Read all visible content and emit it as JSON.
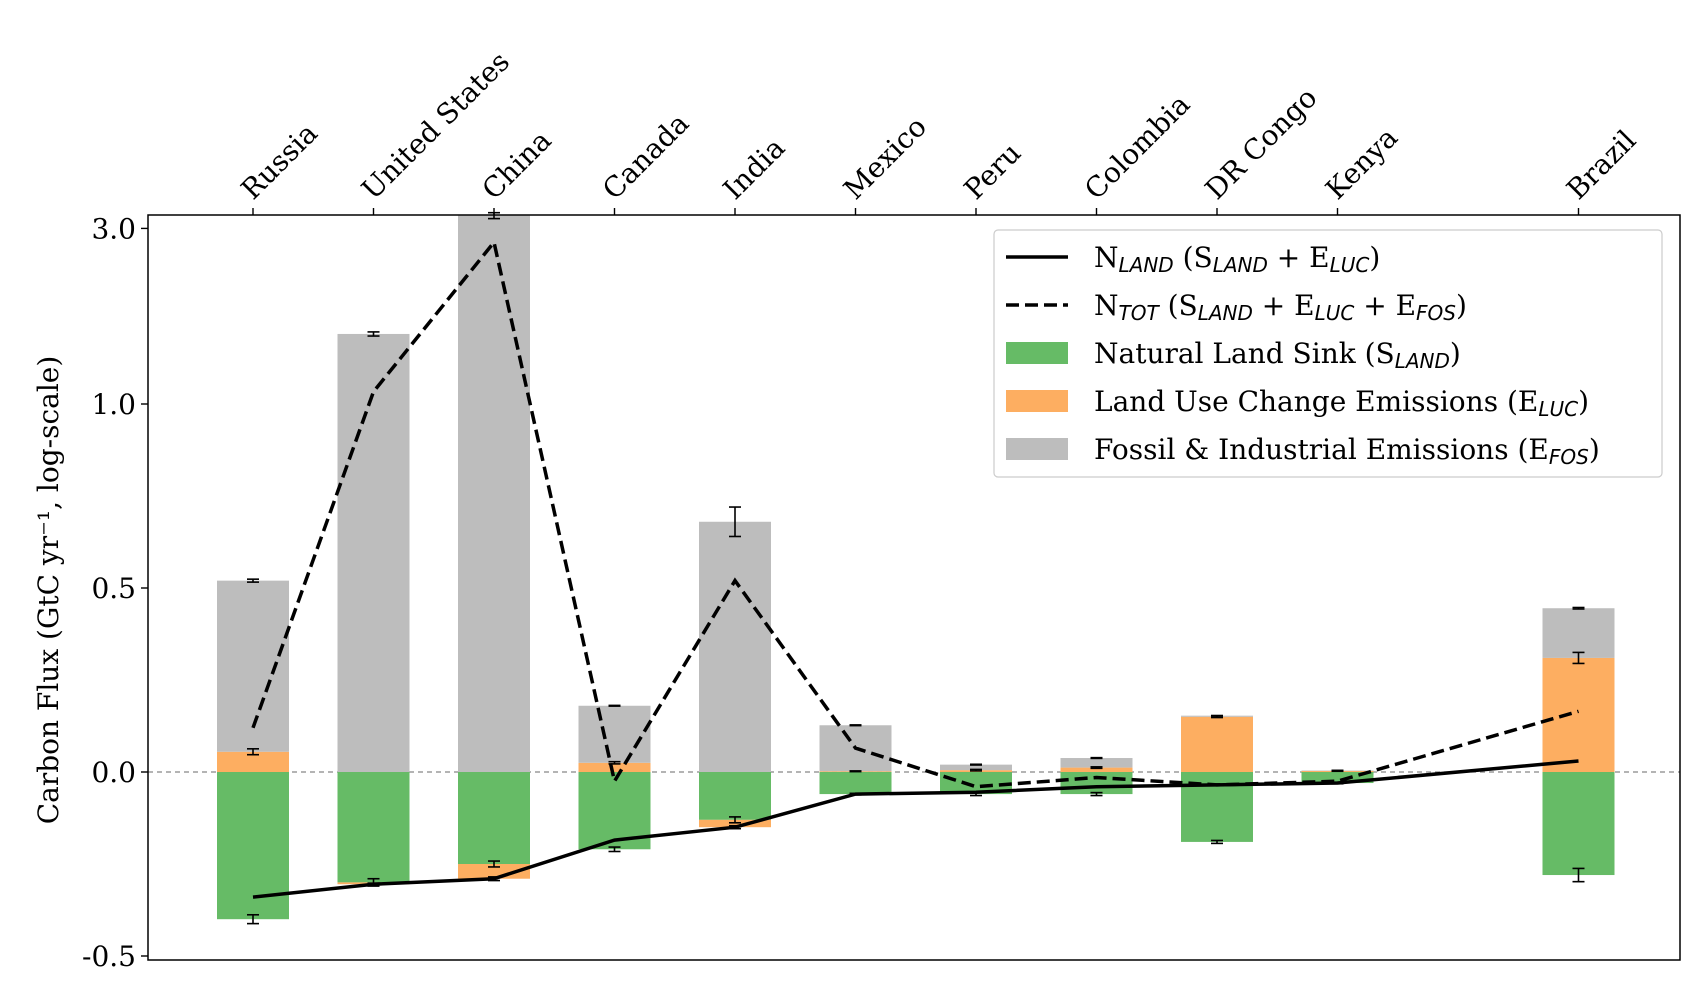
{
  "chart_data": {
    "type": "bar",
    "title": "",
    "xlabel": "",
    "ylabel": "Carbon Flux (GtC yr⁻¹, log-scale)",
    "yscale": "symlog",
    "ylim": [
      -0.5,
      4.2
    ],
    "yticks": [
      -0.5,
      0.0,
      0.5,
      1.0,
      3.0
    ],
    "ytick_labels": [
      "-0.5",
      "0.0",
      "0.5",
      "1.0",
      "3.0"
    ],
    "x_axis_position": "top",
    "categories": [
      {
        "name": "Russia",
        "x": 0
      },
      {
        "name": "United States",
        "x": 1
      },
      {
        "name": "China",
        "x": 2
      },
      {
        "name": "Canada",
        "x": 3
      },
      {
        "name": "India",
        "x": 4
      },
      {
        "name": "Mexico",
        "x": 5
      },
      {
        "name": "Peru",
        "x": 6
      },
      {
        "name": "Colombia",
        "x": 7
      },
      {
        "name": "DR Congo",
        "x": 8
      },
      {
        "name": "Kenya",
        "x": 9
      },
      {
        "name": "Brazil",
        "x": 11
      }
    ],
    "series": [
      {
        "key": "sland",
        "color": "#66bb66",
        "values": [
          -0.4,
          -0.3,
          -0.25,
          -0.21,
          -0.13,
          -0.06,
          -0.06,
          -0.06,
          -0.19,
          -0.03,
          -0.28
        ],
        "errors": [
          0.012,
          0.01,
          0.008,
          0.006,
          0.008,
          0.002,
          0.004,
          0.004,
          0.004,
          0.002,
          0.018
        ]
      },
      {
        "key": "eluc",
        "color": "#fdae61",
        "values": [
          0.055,
          -0.005,
          -0.04,
          0.025,
          -0.02,
          0.002,
          0.005,
          0.012,
          0.15,
          0.003,
          0.31
        ],
        "errors": [
          0.008,
          0.003,
          0.005,
          0.003,
          0.004,
          0.001,
          0.002,
          0.002,
          0.002,
          0.001,
          0.015
        ]
      },
      {
        "key": "efos",
        "color": "#bdbdbd",
        "values": [
          0.465,
          1.55,
          3.25,
          0.155,
          0.68,
          0.125,
          0.015,
          0.026,
          0.003,
          0.001,
          0.135
        ],
        "errors": [
          0.004,
          0.02,
          0.06,
          0.001,
          0.04,
          0.001,
          0.001,
          0.001,
          0.0005,
          0.0005,
          0.002
        ]
      },
      {
        "key": "nland",
        "color": "#000000",
        "values": [
          -0.34,
          -0.305,
          -0.29,
          -0.185,
          -0.15,
          -0.06,
          -0.055,
          -0.04,
          -0.035,
          -0.03,
          0.03
        ]
      },
      {
        "key": "ntot",
        "color": "#000000",
        "values": [
          0.12,
          1.08,
          2.75,
          -0.025,
          0.52,
          0.065,
          -0.04,
          -0.015,
          -0.035,
          -0.025,
          0.165
        ]
      }
    ],
    "legend": {
      "position": "top-right",
      "entries": [
        {
          "key": "nland",
          "kind": "line",
          "parts": [
            [
              "N",
              ""
            ],
            [
              "LAND",
              "sub"
            ],
            [
              " (S",
              ""
            ],
            [
              "LAND",
              "sub"
            ],
            [
              " + E",
              ""
            ],
            [
              "LUC",
              "sub"
            ],
            [
              ")",
              ""
            ]
          ]
        },
        {
          "key": "ntot",
          "kind": "dashed",
          "parts": [
            [
              "N",
              ""
            ],
            [
              "TOT",
              "sub"
            ],
            [
              " (S",
              ""
            ],
            [
              "LAND",
              "sub"
            ],
            [
              " + E",
              ""
            ],
            [
              "LUC",
              "sub"
            ],
            [
              " + E",
              ""
            ],
            [
              "FOS",
              "sub"
            ],
            [
              ")",
              ""
            ]
          ]
        },
        {
          "key": "sland",
          "kind": "patch",
          "parts": [
            [
              "Natural Land Sink (S",
              ""
            ],
            [
              "LAND",
              "sub"
            ],
            [
              ")",
              ""
            ]
          ]
        },
        {
          "key": "eluc",
          "kind": "patch",
          "parts": [
            [
              "Land Use Change Emissions (E",
              ""
            ],
            [
              "LUC",
              "sub"
            ],
            [
              ")",
              ""
            ]
          ]
        },
        {
          "key": "efos",
          "kind": "patch",
          "parts": [
            [
              "Fossil & Industrial Emissions (E",
              ""
            ],
            [
              "FOS",
              "sub"
            ],
            [
              ")",
              ""
            ]
          ]
        }
      ]
    },
    "zero_line": true,
    "grid": false
  }
}
